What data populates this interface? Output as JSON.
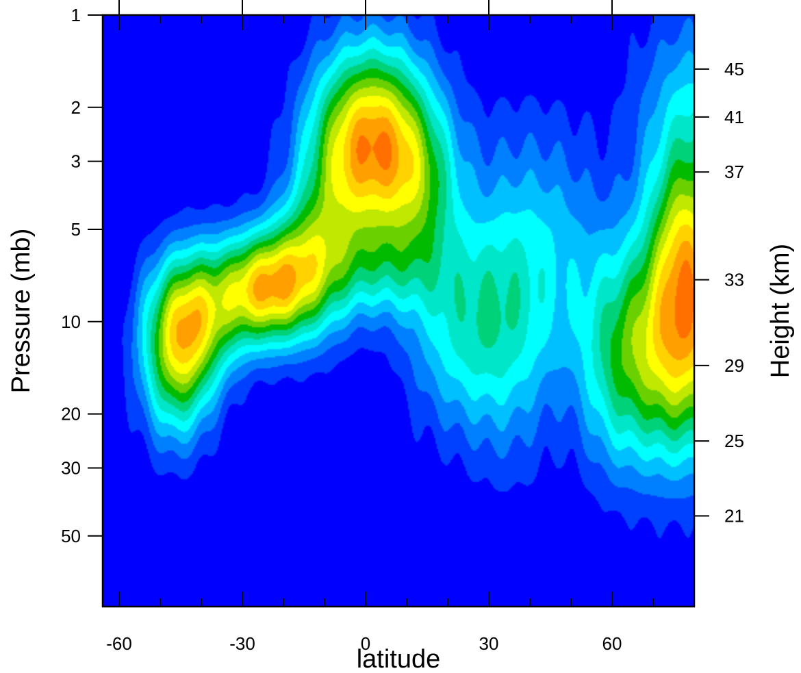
{
  "chart_data": {
    "type": "heatmap",
    "title": "",
    "xlabel": "latitude",
    "ylabel": "Pressure (mb)",
    "ylabel_right": "Height (km)",
    "x_ticks": [
      -60,
      -30,
      0,
      30,
      60
    ],
    "x_tick_labels": [
      "-60",
      "-30",
      "0",
      "30",
      "60"
    ],
    "xlim": [
      -64,
      80
    ],
    "y_ticks": [
      1,
      2,
      3,
      5,
      10,
      20,
      30,
      50
    ],
    "y_tick_labels": [
      "1",
      "2",
      "3",
      "5",
      "10",
      "20",
      "30",
      "50"
    ],
    "ylim": [
      1,
      85
    ],
    "y_scale": "log",
    "y_reversed": true,
    "right_ticks": [
      {
        "label": "45",
        "pressure": 1.5
      },
      {
        "label": "41",
        "pressure": 2.15
      },
      {
        "label": "37",
        "pressure": 3.25
      },
      {
        "label": "33",
        "pressure": 7.3
      },
      {
        "label": "29",
        "pressure": 13.9
      },
      {
        "label": "25",
        "pressure": 24.5
      },
      {
        "label": "21",
        "pressure": 43
      }
    ],
    "colormap": [
      "#0000ff",
      "#0040ff",
      "#0080ff",
      "#00c0ff",
      "#00ffff",
      "#00e6c8",
      "#00d27a",
      "#00bb00",
      "#6ad000",
      "#c0e800",
      "#ffff00",
      "#ffd200",
      "#ffa000",
      "#ff7000"
    ],
    "grid": false,
    "features": [
      {
        "lat": 2,
        "p": 2.6,
        "amp": 12.2,
        "slat": 10,
        "slogp": 0.22
      },
      {
        "lat": 14,
        "p": 3.8,
        "amp": 4,
        "slat": 7,
        "slogp": 0.18
      },
      {
        "lat": -8,
        "p": 4.5,
        "amp": 3,
        "slat": 6,
        "slogp": 0.25
      },
      {
        "lat": -25,
        "p": 7.8,
        "amp": 10.5,
        "slat": 7.5,
        "slogp": 0.13
      },
      {
        "lat": -42,
        "p": 9.5,
        "amp": 8.6,
        "slat": 7.5,
        "slogp": 0.16
      },
      {
        "lat": -46,
        "p": 14.5,
        "amp": 6.2,
        "slat": 6,
        "slogp": 0.18
      },
      {
        "lat": -15,
        "p": 6.5,
        "amp": 5,
        "slat": 6,
        "slogp": 0.17
      },
      {
        "lat": 3,
        "p": 6.8,
        "amp": 3.5,
        "slat": 12,
        "slogp": 0.12
      },
      {
        "lat": 22,
        "p": 11,
        "amp": 4,
        "slat": 9,
        "slogp": 0.22
      },
      {
        "lat": 35,
        "p": 8.5,
        "amp": 4.2,
        "slat": 8,
        "slogp": 0.35
      },
      {
        "lat": 48,
        "p": 6,
        "amp": 2.5,
        "slat": 8,
        "slogp": 0.3
      },
      {
        "lat": 76,
        "p": 12,
        "amp": 10.8,
        "slat": 11,
        "slogp": 0.27
      },
      {
        "lat": 78,
        "p": 5.5,
        "amp": 6,
        "slat": 6,
        "slogp": 0.22
      },
      {
        "lat": 80,
        "p": 2.2,
        "amp": 4,
        "slat": 10,
        "slogp": 0.25
      },
      {
        "lat": 60,
        "p": 14,
        "amp": 3,
        "slat": 6,
        "slogp": 0.25
      }
    ]
  }
}
